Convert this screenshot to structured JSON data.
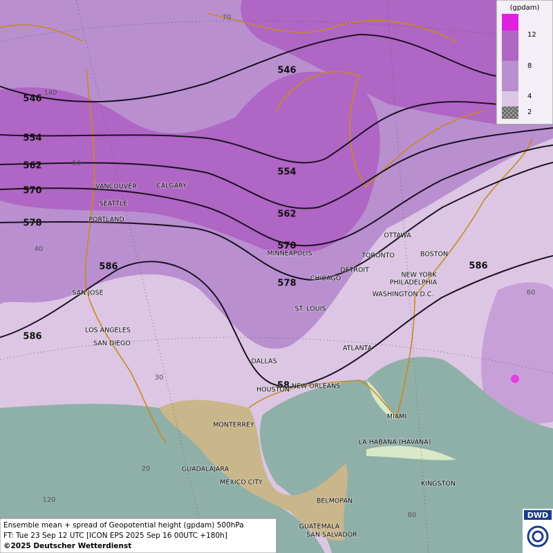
{
  "map": {
    "contour_labels": [
      "546",
      "546",
      "554",
      "554",
      "562",
      "562",
      "570",
      "570",
      "578",
      "578",
      "586",
      "586",
      "586",
      "58"
    ],
    "grid_labels": [
      "70",
      "140",
      "50",
      "40",
      "30",
      "20",
      "120",
      "60",
      "80"
    ],
    "cities": [
      "VANCOUVER",
      "CALGARY",
      "SEATTLE",
      "PORTLAND",
      "MINNEAPOLIS",
      "OTTAWA",
      "TORONTO",
      "BOSTON",
      "DETROIT",
      "NEW YORK",
      "CHICAGO",
      "PHILADELPHIA",
      "WASHINGTON D.C.",
      "SAN JOSE",
      "ST. LOUIS",
      "LOS ANGELES",
      "SAN DIEGO",
      "ATLANTA",
      "DALLAS",
      "HOUSTON",
      "NEW ORLEANS",
      "MIAMI",
      "MONTERREY",
      "LA HABANA (HAVANA)",
      "GUADALAJARA",
      "MEXICO CITY",
      "KINGSTON",
      "BELMOPAN",
      "GUATEMALA",
      "SAN SALVADOR"
    ],
    "legend": {
      "title": "(gpdam)",
      "labels": [
        "12",
        "8",
        "4",
        "2"
      ]
    },
    "caption": [
      "Ensemble mean + spread of Geopotential height (gpdam) 500hPa",
      "FT: Tue 23 Sep 12 UTC [ICON EPS 2025 Sep 16 00UTC +180h]",
      "©2025 Deutscher Wetterdienst"
    ],
    "logo": "DWD"
  }
}
